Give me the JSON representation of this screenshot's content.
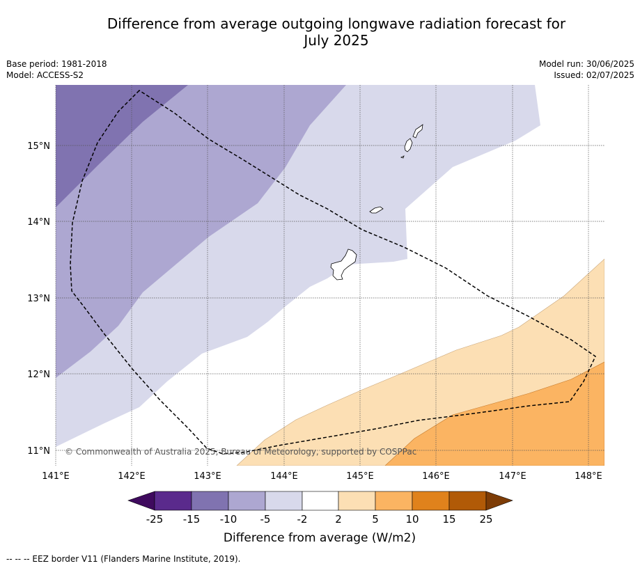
{
  "title_line1": "Difference from average outgoing longwave radiation forecast for",
  "title_line2": "July 2025",
  "base_period": "Base period: 1981-2018",
  "model": "Model: ACCESS-S2",
  "model_run": "Model run: 30/06/2025",
  "issued": "Issued: 02/07/2025",
  "copyright": "© Commonwealth of Australia 2025, Bureau of Meteorology, supported by COSPPac",
  "footnote": "--  --  -- EEZ border V11 (Flanders Marine Institute, 2019).",
  "map": {
    "lat_labels": [
      "15°N",
      "14°N",
      "13°N",
      "12°N",
      "11°N"
    ],
    "lon_labels": [
      "141°E",
      "142°E",
      "143°E",
      "144°E",
      "145°E",
      "146°E",
      "147°E",
      "148°E"
    ],
    "lat_values": [
      15,
      14,
      13,
      12,
      11
    ],
    "lon_values": [
      141,
      142,
      143,
      144,
      145,
      146,
      147,
      148
    ],
    "lat_range": [
      10.8,
      15.8
    ],
    "lon_range": [
      141,
      148.2
    ]
  },
  "colorbar": {
    "title": "Difference from average (W/m2)",
    "labels": [
      "-25",
      "-15",
      "-10",
      "-5",
      "-2",
      "2",
      "5",
      "10",
      "15",
      "25"
    ],
    "colors": [
      "#3f0a5e",
      "#5a2a8c",
      "#8073b0",
      "#ada7d1",
      "#d8d9eb",
      "#ffffff",
      "#fcdfb4",
      "#fbb462",
      "#e0821c",
      "#b15a07",
      "#7d3c06"
    ]
  }
}
